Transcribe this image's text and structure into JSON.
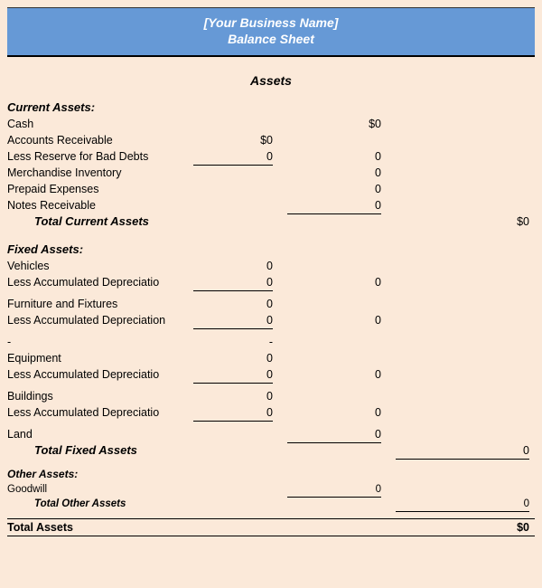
{
  "colors": {
    "page_bg": "#fbe9d9",
    "header_bg": "#6699d6",
    "header_text": "#ffffff",
    "rule": "#000000",
    "text": "#000000"
  },
  "header": {
    "line1": "[Your Business Name]",
    "line2": "Balance Sheet"
  },
  "section_title": "Assets",
  "current_assets": {
    "title": "Current Assets:",
    "cash": {
      "label": "Cash",
      "c2": "$0"
    },
    "ar": {
      "label": "Accounts Receivable",
      "c1": "$0"
    },
    "bad": {
      "label": "Less Reserve for Bad Debts",
      "c1": "0",
      "c2": "0"
    },
    "inv": {
      "label": "Merchandise Inventory",
      "c2": "0"
    },
    "pre": {
      "label": "Prepaid Expenses",
      "c2": "0"
    },
    "notes": {
      "label": "Notes Receivable",
      "c2": "0"
    },
    "total": {
      "label": "Total Current Assets",
      "c3": "$0"
    }
  },
  "fixed_assets": {
    "title": "Fixed Assets:",
    "veh": {
      "label": "Vehicles",
      "c1": "0"
    },
    "veh_d": {
      "label": "Less Accumulated Depreciatio",
      "c1": "0",
      "c2": "0"
    },
    "furn": {
      "label": "Furniture and Fixtures",
      "c1": "0"
    },
    "furn_d": {
      "label": "Less Accumulated Depreciation",
      "c1": "0",
      "c2": "0"
    },
    "eq_trunc": {
      "label": "-",
      "dash": "-"
    },
    "eq": {
      "label": "Equipment",
      "c1": "0"
    },
    "eq_d": {
      "label": "Less Accumulated Depreciatio",
      "c1": "0",
      "c2": "0"
    },
    "bld": {
      "label": "Buildings",
      "c1": "0"
    },
    "bld_d": {
      "label": "Less Accumulated Depreciatio",
      "c1": "0",
      "c2": "0"
    },
    "land": {
      "label": "Land",
      "c2": "0"
    },
    "total": {
      "label": "Total Fixed Assets",
      "c3": "0"
    }
  },
  "other_assets": {
    "title": "Other Assets:",
    "goodwill": {
      "label": "Goodwill",
      "c2": "0"
    },
    "total": {
      "label": "Total Other Assets",
      "c3": "0"
    }
  },
  "grand_total": {
    "label": "Total Assets",
    "c3": "$0"
  }
}
